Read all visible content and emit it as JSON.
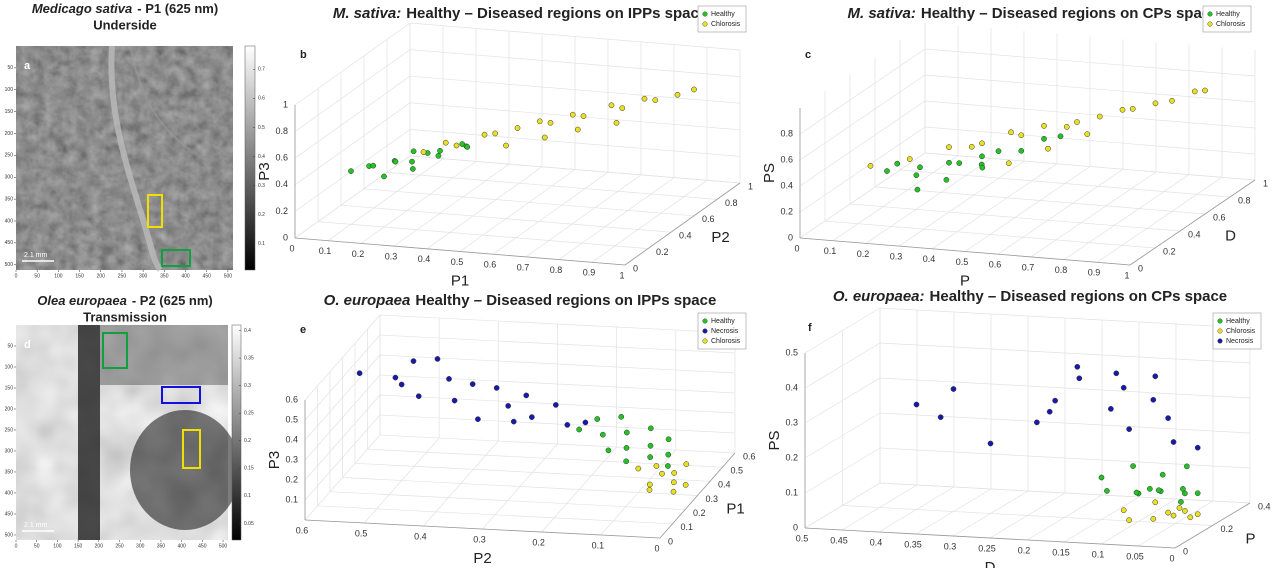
{
  "chart_data": [
    {
      "type": "image",
      "species": "Medicago sativa",
      "title": "- P1 (625 nm)",
      "subtitle": "Underside",
      "panel": "a",
      "scale_bar": "2.1 mm",
      "xlim": [
        0,
        512
      ],
      "ylim": [
        0,
        512
      ],
      "xticks": [
        0,
        50,
        100,
        150,
        200,
        250,
        300,
        350,
        400,
        450,
        500
      ],
      "yticks": [
        50,
        100,
        150,
        200,
        250,
        300,
        350,
        400,
        450,
        500
      ],
      "clim": [
        0.01,
        0.78
      ],
      "cticks": [
        0.1,
        0.2,
        0.3,
        0.4,
        0.5,
        0.6,
        0.7
      ]
    },
    {
      "type": "scatter3d",
      "species": "M. sativa:",
      "title": "Healthy – Diseased regions on IPPs space",
      "panel": "b",
      "xlabel": "P1",
      "ylabel": "P2",
      "zlabel": "P3",
      "xlim": [
        0,
        1
      ],
      "ylim": [
        0,
        1
      ],
      "zlim": [
        0,
        1
      ],
      "xticks": [
        0,
        0.1,
        0.2,
        0.3,
        0.4,
        0.5,
        0.6,
        0.7,
        0.8,
        0.9,
        1
      ],
      "yticks": [
        0,
        0.2,
        0.4,
        0.6,
        0.8,
        1
      ],
      "zticks": [
        0,
        0.2,
        0.4,
        0.6,
        0.8,
        1
      ],
      "series": [
        {
          "name": "Healthy",
          "color": "#22c322",
          "x": [
            0.1,
            0.12,
            0.15,
            0.18,
            0.2,
            0.22,
            0.25,
            0.28,
            0.3,
            0.33,
            0.35,
            0.38,
            0.4,
            0.2,
            0.27
          ],
          "y": [
            0.2,
            0.3,
            0.25,
            0.35,
            0.3,
            0.4,
            0.3,
            0.35,
            0.4,
            0.3,
            0.45,
            0.4,
            0.35,
            0.2,
            0.25
          ],
          "z": [
            0.4,
            0.38,
            0.42,
            0.4,
            0.43,
            0.45,
            0.44,
            0.48,
            0.47,
            0.5,
            0.5,
            0.52,
            0.55,
            0.38,
            0.42
          ]
        },
        {
          "name": "Chlorosis",
          "color": "#e8e020",
          "x": [
            0.25,
            0.3,
            0.35,
            0.4,
            0.45,
            0.5,
            0.55,
            0.6,
            0.65,
            0.7,
            0.75,
            0.8,
            0.85,
            0.9,
            0.95,
            1.0,
            0.5,
            0.6,
            0.7,
            0.8
          ],
          "y": [
            0.4,
            0.45,
            0.4,
            0.5,
            0.45,
            0.5,
            0.55,
            0.5,
            0.55,
            0.5,
            0.6,
            0.55,
            0.6,
            0.55,
            0.6,
            0.6,
            0.4,
            0.45,
            0.45,
            0.5
          ],
          "z": [
            0.45,
            0.5,
            0.52,
            0.55,
            0.6,
            0.62,
            0.65,
            0.68,
            0.72,
            0.75,
            0.78,
            0.8,
            0.85,
            0.88,
            0.9,
            0.95,
            0.55,
            0.6,
            0.68,
            0.72
          ]
        }
      ]
    },
    {
      "type": "scatter3d",
      "species": "M. sativa:",
      "title": "Healthy – Diseased regions on CPs space",
      "panel": "c",
      "xlabel": "P",
      "ylabel": "D",
      "zlabel": "PS",
      "xlim": [
        0,
        1
      ],
      "ylim": [
        0,
        1
      ],
      "zlim": [
        0,
        1
      ],
      "xticks": [
        0,
        0.1,
        0.2,
        0.3,
        0.4,
        0.5,
        0.6,
        0.7,
        0.8,
        0.9,
        1
      ],
      "yticks": [
        0,
        0.2,
        0.4,
        0.6,
        0.8,
        1
      ],
      "zticks": [
        0,
        0.2,
        0.4,
        0.6,
        0.8
      ],
      "series": [
        {
          "name": "Healthy",
          "color": "#22c322",
          "x": [
            0.15,
            0.2,
            0.22,
            0.25,
            0.3,
            0.35,
            0.38,
            0.4,
            0.45,
            0.5,
            0.55,
            0.6,
            0.28,
            0.33,
            0.42
          ],
          "y": [
            0.3,
            0.25,
            0.35,
            0.3,
            0.4,
            0.35,
            0.45,
            0.4,
            0.4,
            0.45,
            0.5,
            0.5,
            0.2,
            0.3,
            0.35
          ],
          "z": [
            0.35,
            0.45,
            0.3,
            0.4,
            0.38,
            0.42,
            0.35,
            0.45,
            0.5,
            0.48,
            0.55,
            0.58,
            0.3,
            0.32,
            0.4
          ]
        },
        {
          "name": "Chlorosis",
          "color": "#e8e020",
          "x": [
            0.1,
            0.2,
            0.3,
            0.35,
            0.4,
            0.45,
            0.5,
            0.55,
            0.6,
            0.65,
            0.7,
            0.75,
            0.8,
            0.85,
            0.9,
            0.95,
            1.0,
            0.6,
            0.7,
            0.5
          ],
          "y": [
            0.3,
            0.35,
            0.4,
            0.45,
            0.4,
            0.5,
            0.45,
            0.5,
            0.55,
            0.5,
            0.55,
            0.6,
            0.55,
            0.6,
            0.6,
            0.65,
            0.6,
            0.4,
            0.45,
            0.35
          ],
          "z": [
            0.38,
            0.42,
            0.5,
            0.48,
            0.55,
            0.58,
            0.6,
            0.65,
            0.62,
            0.7,
            0.72,
            0.75,
            0.8,
            0.82,
            0.85,
            0.9,
            0.95,
            0.55,
            0.65,
            0.45
          ]
        }
      ]
    },
    {
      "type": "image",
      "species": "Olea europaea",
      "title": "- P2 (625 nm)",
      "subtitle": "Transmission",
      "panel": "d",
      "scale_bar": "2.1 mm",
      "xlim": [
        0,
        512
      ],
      "ylim": [
        0,
        512
      ],
      "xticks": [
        0,
        50,
        100,
        150,
        200,
        250,
        300,
        350,
        400,
        450,
        500
      ],
      "yticks": [
        50,
        100,
        150,
        200,
        250,
        300,
        350,
        400,
        450,
        500
      ],
      "clim": [
        0.02,
        0.41
      ],
      "cticks": [
        0.05,
        0.1,
        0.15,
        0.2,
        0.25,
        0.3,
        0.35,
        0.4
      ]
    },
    {
      "type": "scatter3d",
      "species": "O. europaea",
      "title": "Healthy – Diseased regions on IPPs space",
      "panel": "e",
      "xlabel": "P2",
      "ylabel": "P1",
      "zlabel": "P3",
      "xlim": [
        0.6,
        0
      ],
      "ylim": [
        0,
        0.6
      ],
      "zlim": [
        0,
        0.6
      ],
      "xticks": [
        0.6,
        0.5,
        0.4,
        0.3,
        0.2,
        0.1,
        0
      ],
      "yticks": [
        0,
        0.1,
        0.2,
        0.3,
        0.4,
        0.5,
        0.6
      ],
      "zticks": [
        0.1,
        0.2,
        0.3,
        0.4,
        0.5,
        0.6
      ],
      "series": [
        {
          "name": "Healthy",
          "color": "#22c322",
          "x": [
            0.2,
            0.18,
            0.16,
            0.15,
            0.13,
            0.12,
            0.1,
            0.09,
            0.08,
            0.07,
            0.06,
            0.05,
            0.14,
            0.11
          ],
          "y": [
            0.3,
            0.35,
            0.3,
            0.4,
            0.35,
            0.3,
            0.4,
            0.35,
            0.3,
            0.4,
            0.35,
            0.3,
            0.25,
            0.25
          ],
          "z": [
            0.3,
            0.32,
            0.28,
            0.3,
            0.26,
            0.22,
            0.25,
            0.2,
            0.18,
            0.2,
            0.16,
            0.14,
            0.24,
            0.19
          ]
        },
        {
          "name": "Necrosis",
          "color": "#1a1aaa",
          "x": [
            0.55,
            0.5,
            0.48,
            0.45,
            0.42,
            0.4,
            0.38,
            0.35,
            0.32,
            0.3,
            0.28,
            0.25,
            0.22,
            0.2,
            0.45,
            0.35,
            0.5,
            0.3
          ],
          "y": [
            0.2,
            0.25,
            0.3,
            0.2,
            0.3,
            0.25,
            0.3,
            0.35,
            0.3,
            0.35,
            0.3,
            0.35,
            0.3,
            0.35,
            0.35,
            0.2,
            0.3,
            0.25
          ],
          "z": [
            0.6,
            0.55,
            0.6,
            0.5,
            0.52,
            0.45,
            0.5,
            0.45,
            0.4,
            0.42,
            0.35,
            0.38,
            0.32,
            0.3,
            0.58,
            0.4,
            0.48,
            0.36
          ]
        },
        {
          "name": "Chlorosis",
          "color": "#e8e020",
          "x": [
            0.1,
            0.08,
            0.07,
            0.06,
            0.05,
            0.04,
            0.03,
            0.02,
            0.06,
            0.04
          ],
          "y": [
            0.3,
            0.35,
            0.25,
            0.3,
            0.35,
            0.3,
            0.25,
            0.3,
            0.2,
            0.4
          ],
          "z": [
            0.12,
            0.1,
            0.08,
            0.1,
            0.07,
            0.06,
            0.05,
            0.05,
            0.09,
            0.08
          ]
        }
      ]
    },
    {
      "type": "scatter3d",
      "species": "O. europaea:",
      "title": "Healthy – Diseased regions on CPs space",
      "panel": "f",
      "xlabel": "D",
      "ylabel": "P",
      "zlabel": "PS",
      "xlim": [
        0.5,
        0
      ],
      "ylim": [
        0,
        0.4
      ],
      "zlim": [
        0,
        0.5
      ],
      "xticks": [
        0.5,
        0.45,
        0.4,
        0.35,
        0.3,
        0.25,
        0.2,
        0.15,
        0.1,
        0.05,
        0
      ],
      "yticks": [
        0,
        0.2,
        0.4
      ],
      "zticks": [
        0,
        0.1,
        0.2,
        0.3,
        0.4,
        0.5
      ],
      "series": [
        {
          "name": "Healthy",
          "color": "#22c322",
          "x": [
            0.15,
            0.13,
            0.12,
            0.1,
            0.09,
            0.08,
            0.07,
            0.06,
            0.05,
            0.04,
            0.03,
            0.02,
            0.11,
            0.06
          ],
          "y": [
            0.2,
            0.15,
            0.25,
            0.2,
            0.15,
            0.25,
            0.2,
            0.15,
            0.25,
            0.2,
            0.15,
            0.2,
            0.3,
            0.3
          ],
          "z": [
            0.12,
            0.1,
            0.14,
            0.08,
            0.1,
            0.12,
            0.09,
            0.11,
            0.07,
            0.1,
            0.08,
            0.09,
            0.06,
            0.13
          ]
        },
        {
          "name": "Chlorosis",
          "color": "#e8e020",
          "x": [
            0.12,
            0.1,
            0.09,
            0.08,
            0.06,
            0.05,
            0.04,
            0.03,
            0.07,
            0.02
          ],
          "y": [
            0.2,
            0.15,
            0.25,
            0.2,
            0.2,
            0.25,
            0.15,
            0.2,
            0.3,
            0.2
          ],
          "z": [
            0.03,
            0.02,
            0.04,
            0.01,
            0.03,
            0.02,
            0.04,
            0.02,
            0.01,
            0.03
          ]
        },
        {
          "name": "Necrosis",
          "color": "#1a1aaa",
          "x": [
            0.4,
            0.38,
            0.35,
            0.3,
            0.25,
            0.22,
            0.2,
            0.18,
            0.15,
            0.12,
            0.1,
            0.08,
            0.06,
            0.04,
            0.02,
            0.17,
            0.13,
            0.09
          ],
          "y": [
            0.2,
            0.25,
            0.2,
            0.2,
            0.25,
            0.2,
            0.15,
            0.2,
            0.25,
            0.2,
            0.15,
            0.2,
            0.2,
            0.15,
            0.2,
            0.15,
            0.2,
            0.25
          ],
          "z": [
            0.3,
            0.25,
            0.35,
            0.2,
            0.25,
            0.3,
            0.35,
            0.4,
            0.3,
            0.38,
            0.28,
            0.35,
            0.3,
            0.25,
            0.22,
            0.45,
            0.42,
            0.4
          ]
        }
      ]
    }
  ]
}
